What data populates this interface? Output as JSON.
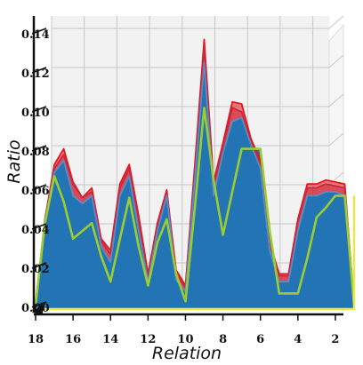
{
  "chart_data": {
    "type": "area",
    "xlabel": "Relation",
    "ylabel": "Ratio",
    "x": [
      18,
      17.5,
      17,
      16.5,
      16,
      15.5,
      15,
      14.5,
      14,
      13.5,
      13,
      12.5,
      12,
      11.5,
      11,
      10.5,
      10,
      9.5,
      9,
      8.5,
      8,
      7.5,
      7,
      6.5,
      6,
      5.5,
      5,
      4.5,
      4,
      3.5,
      3,
      2.5,
      2,
      1.5,
      1
    ],
    "ylim": [
      0,
      0.15
    ],
    "xlim": [
      1,
      18
    ],
    "x_ticks": [
      18,
      16,
      14,
      12,
      10,
      8,
      6,
      4,
      2
    ],
    "x_tick_labels": [
      "18",
      "16",
      "14",
      "12",
      "10",
      "8",
      "6",
      "4",
      "2"
    ],
    "y_ticks": [
      0.0,
      0.02,
      0.04,
      0.06,
      0.08,
      0.1,
      0.12,
      0.14
    ],
    "y_tick_labels": [
      "0.00",
      "0.02",
      "0.04",
      "0.06",
      "0.08",
      "0.10",
      "0.12",
      "0.14"
    ],
    "grid": true,
    "series": [
      {
        "values": [
          0.002,
          0.046,
          0.074,
          0.082,
          0.065,
          0.057,
          0.062,
          0.036,
          0.03,
          0.064,
          0.074,
          0.048,
          0.018,
          0.044,
          0.061,
          0.02,
          0.012,
          0.074,
          0.138,
          0.065,
          0.085,
          0.106,
          0.105,
          0.087,
          0.076,
          0.034,
          0.018,
          0.018,
          0.046,
          0.064,
          0.064,
          0.066,
          0.065,
          0.064,
          0.002
        ],
        "color": "#e8141e"
      },
      {
        "values": [
          0.002,
          0.046,
          0.072,
          0.079,
          0.064,
          0.057,
          0.06,
          0.035,
          0.028,
          0.062,
          0.072,
          0.046,
          0.017,
          0.042,
          0.06,
          0.018,
          0.011,
          0.072,
          0.135,
          0.063,
          0.083,
          0.103,
          0.101,
          0.085,
          0.074,
          0.033,
          0.017,
          0.017,
          0.045,
          0.062,
          0.062,
          0.064,
          0.063,
          0.062,
          0.002
        ],
        "color": "#c8283c"
      },
      {
        "values": [
          0.002,
          0.045,
          0.07,
          0.076,
          0.058,
          0.054,
          0.058,
          0.032,
          0.024,
          0.058,
          0.068,
          0.04,
          0.014,
          0.04,
          0.058,
          0.015,
          0.009,
          0.066,
          0.126,
          0.058,
          0.08,
          0.096,
          0.098,
          0.084,
          0.072,
          0.03,
          0.014,
          0.014,
          0.04,
          0.058,
          0.058,
          0.06,
          0.06,
          0.058,
          0.002
        ],
        "color": "#5b8cc4"
      },
      {
        "values": [
          0.002,
          0.044,
          0.068,
          0.055,
          0.036,
          0.04,
          0.044,
          0.027,
          0.014,
          0.036,
          0.057,
          0.032,
          0.012,
          0.034,
          0.046,
          0.018,
          0.004,
          0.052,
          0.103,
          0.066,
          0.038,
          0.06,
          0.082,
          0.082,
          0.082,
          0.04,
          0.008,
          0.008,
          0.008,
          0.026,
          0.047,
          0.052,
          0.058,
          0.058,
          0.002
        ],
        "color": "#9acd32"
      }
    ],
    "fill_color": "#2374b4"
  }
}
